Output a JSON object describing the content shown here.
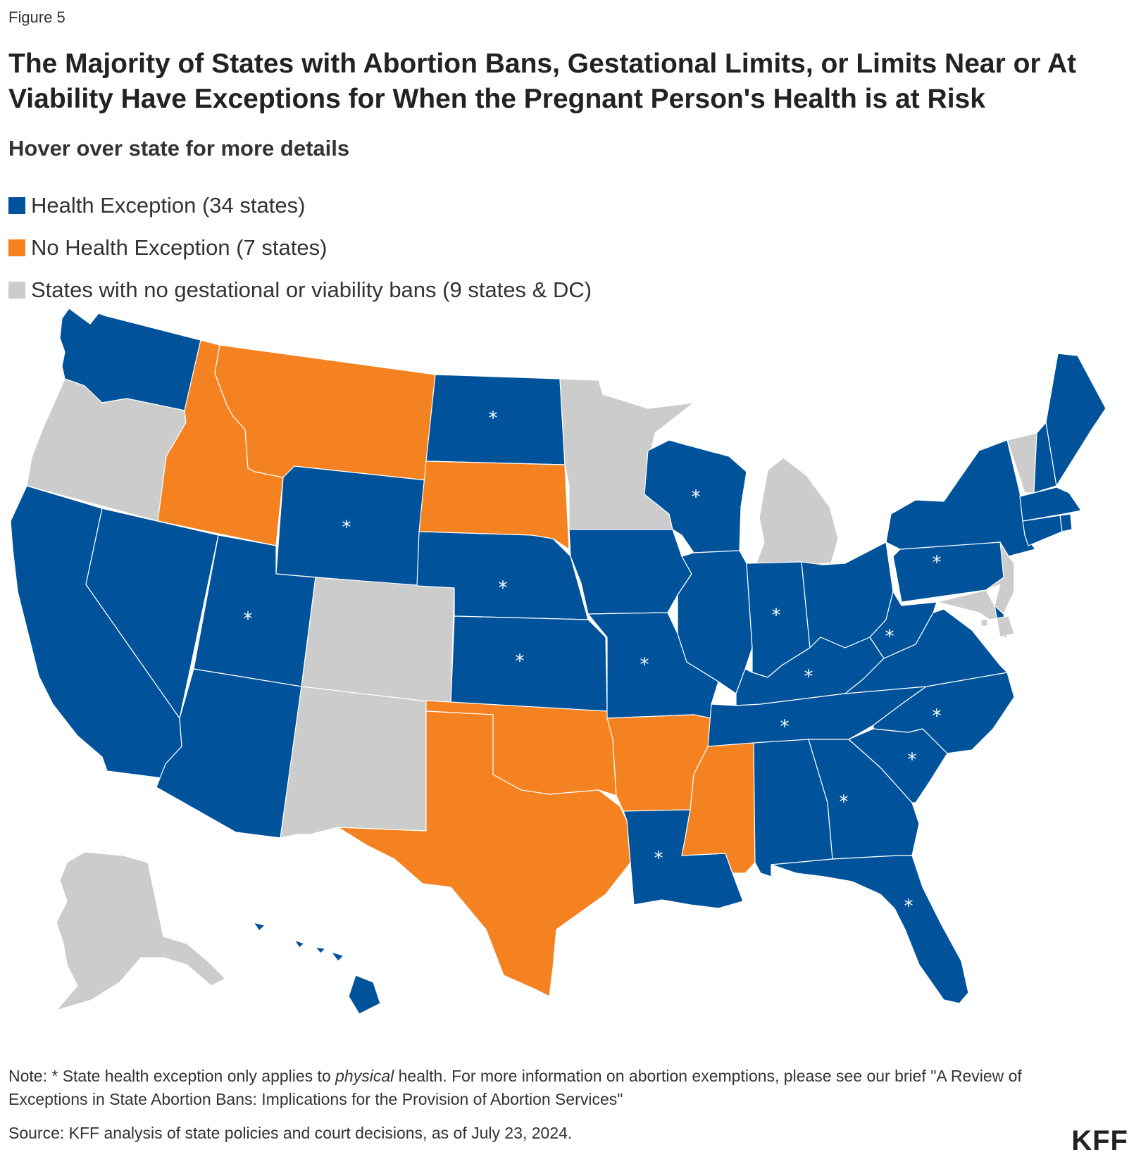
{
  "figure_label": "Figure 5",
  "title": "The Majority of States with Abortion Bans, Gestational Limits, or Limits Near or At Viability Have Exceptions for When the Pregnant Person's Health is at Risk",
  "subtitle": "Hover over state for more details",
  "colors": {
    "health_exception": "#00539b",
    "no_health_exception": "#f58220",
    "no_ban": "#cccccc"
  },
  "legend": [
    {
      "label": "Health Exception (34 states)",
      "category": "health_exception"
    },
    {
      "label": "No Health Exception (7 states)",
      "category": "no_health_exception"
    },
    {
      "label": "States with no gestational or viability bans (9 states & DC)",
      "category": "no_ban"
    }
  ],
  "map_data": {
    "states": [
      {
        "id": "WA",
        "category": "health_exception",
        "physical_only": false
      },
      {
        "id": "OR",
        "category": "no_ban",
        "physical_only": false
      },
      {
        "id": "CA",
        "category": "health_exception",
        "physical_only": false
      },
      {
        "id": "NV",
        "category": "health_exception",
        "physical_only": false
      },
      {
        "id": "ID",
        "category": "no_health_exception",
        "physical_only": false
      },
      {
        "id": "MT",
        "category": "no_health_exception",
        "physical_only": false
      },
      {
        "id": "WY",
        "category": "health_exception",
        "physical_only": true
      },
      {
        "id": "UT",
        "category": "health_exception",
        "physical_only": true
      },
      {
        "id": "AZ",
        "category": "health_exception",
        "physical_only": false
      },
      {
        "id": "CO",
        "category": "no_ban",
        "physical_only": false
      },
      {
        "id": "NM",
        "category": "no_ban",
        "physical_only": false
      },
      {
        "id": "ND",
        "category": "health_exception",
        "physical_only": true
      },
      {
        "id": "SD",
        "category": "no_health_exception",
        "physical_only": false
      },
      {
        "id": "NE",
        "category": "health_exception",
        "physical_only": true
      },
      {
        "id": "KS",
        "category": "health_exception",
        "physical_only": true
      },
      {
        "id": "OK",
        "category": "no_health_exception",
        "physical_only": false
      },
      {
        "id": "TX",
        "category": "no_health_exception",
        "physical_only": false
      },
      {
        "id": "MN",
        "category": "no_ban",
        "physical_only": false
      },
      {
        "id": "IA",
        "category": "health_exception",
        "physical_only": false
      },
      {
        "id": "MO",
        "category": "health_exception",
        "physical_only": true
      },
      {
        "id": "AR",
        "category": "no_health_exception",
        "physical_only": false
      },
      {
        "id": "LA",
        "category": "health_exception",
        "physical_only": true
      },
      {
        "id": "WI",
        "category": "health_exception",
        "physical_only": true
      },
      {
        "id": "IL",
        "category": "health_exception",
        "physical_only": false
      },
      {
        "id": "MI",
        "category": "no_ban",
        "physical_only": false
      },
      {
        "id": "IN",
        "category": "health_exception",
        "physical_only": true
      },
      {
        "id": "OH",
        "category": "health_exception",
        "physical_only": false
      },
      {
        "id": "KY",
        "category": "health_exception",
        "physical_only": true
      },
      {
        "id": "TN",
        "category": "health_exception",
        "physical_only": true
      },
      {
        "id": "MS",
        "category": "no_health_exception",
        "physical_only": false
      },
      {
        "id": "AL",
        "category": "health_exception",
        "physical_only": false
      },
      {
        "id": "GA",
        "category": "health_exception",
        "physical_only": true
      },
      {
        "id": "FL",
        "category": "health_exception",
        "physical_only": true
      },
      {
        "id": "SC",
        "category": "health_exception",
        "physical_only": true
      },
      {
        "id": "NC",
        "category": "health_exception",
        "physical_only": true
      },
      {
        "id": "VA",
        "category": "health_exception",
        "physical_only": false
      },
      {
        "id": "WV",
        "category": "health_exception",
        "physical_only": true
      },
      {
        "id": "PA",
        "category": "health_exception",
        "physical_only": true
      },
      {
        "id": "NY",
        "category": "health_exception",
        "physical_only": false
      },
      {
        "id": "VT",
        "category": "no_ban",
        "physical_only": false
      },
      {
        "id": "NH",
        "category": "health_exception",
        "physical_only": false
      },
      {
        "id": "ME",
        "category": "health_exception",
        "physical_only": false
      },
      {
        "id": "MA",
        "category": "health_exception",
        "physical_only": false
      },
      {
        "id": "RI",
        "category": "health_exception",
        "physical_only": false
      },
      {
        "id": "CT",
        "category": "health_exception",
        "physical_only": false
      },
      {
        "id": "NJ",
        "category": "no_ban",
        "physical_only": false
      },
      {
        "id": "DE",
        "category": "health_exception",
        "physical_only": false
      },
      {
        "id": "MD",
        "category": "no_ban",
        "physical_only": false
      },
      {
        "id": "DC",
        "category": "no_ban",
        "physical_only": false
      },
      {
        "id": "AK",
        "category": "no_ban",
        "physical_only": false
      },
      {
        "id": "HI",
        "category": "health_exception",
        "physical_only": false
      }
    ]
  },
  "note": {
    "prefix": "Note: * State health exception only applies to ",
    "emphasis": "physical",
    "suffix": " health. For more information on abortion exemptions, please see our brief \"A Review of Exceptions in State Abortion Bans: Implications for the Provision of Abortion Services\""
  },
  "source": "Source: KFF analysis of state policies and court decisions, as of July 23, 2024.",
  "logo": "KFF"
}
